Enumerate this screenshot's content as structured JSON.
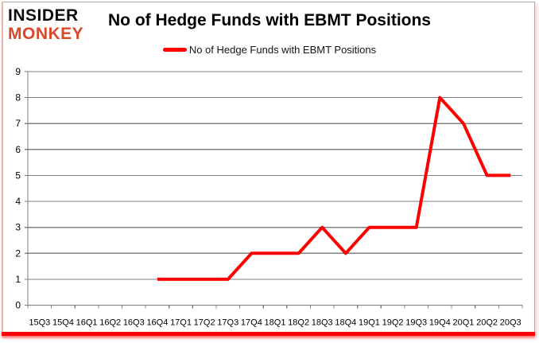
{
  "header": {
    "logo": {
      "line1": "INSIDER",
      "line2": "MONKEY"
    },
    "title": "No of Hedge Funds with EBMT Positions",
    "legend": {
      "label": "No of Hedge Funds with EBMT Positions",
      "swatch_color": "#ff0000"
    }
  },
  "colors": {
    "series_red": "#ff0000",
    "grid_gray": "#808080",
    "axis_text": "#000000",
    "logo_black": "#0d0d0d",
    "logo_red": "#d9472b",
    "frame_bottom_red": "#fd0000",
    "frame_left_pink": "#f2b3ad",
    "frame_border_gray": "#a8a8a8"
  },
  "chart_data": {
    "type": "line",
    "title": "No of Hedge Funds with EBMT Positions",
    "categories": [
      "15Q3",
      "15Q4",
      "16Q1",
      "16Q2",
      "16Q3",
      "16Q4",
      "17Q1",
      "17Q2",
      "17Q3",
      "17Q4",
      "18Q1",
      "18Q2",
      "18Q3",
      "18Q4",
      "19Q1",
      "19Q2",
      "19Q3",
      "19Q4",
      "20Q1",
      "20Q2",
      "20Q3"
    ],
    "series": [
      {
        "name": "No of Hedge Funds with EBMT Positions",
        "color": "#ff0000",
        "values": [
          null,
          null,
          null,
          null,
          null,
          1,
          1,
          1,
          1,
          2,
          2,
          2,
          3,
          2,
          3,
          3,
          3,
          8,
          7,
          5,
          5
        ]
      }
    ],
    "xlabel": "",
    "ylabel": "",
    "ylim": [
      0,
      9
    ],
    "ytick_step": 1,
    "grid": true,
    "legend_position": "top-center"
  }
}
